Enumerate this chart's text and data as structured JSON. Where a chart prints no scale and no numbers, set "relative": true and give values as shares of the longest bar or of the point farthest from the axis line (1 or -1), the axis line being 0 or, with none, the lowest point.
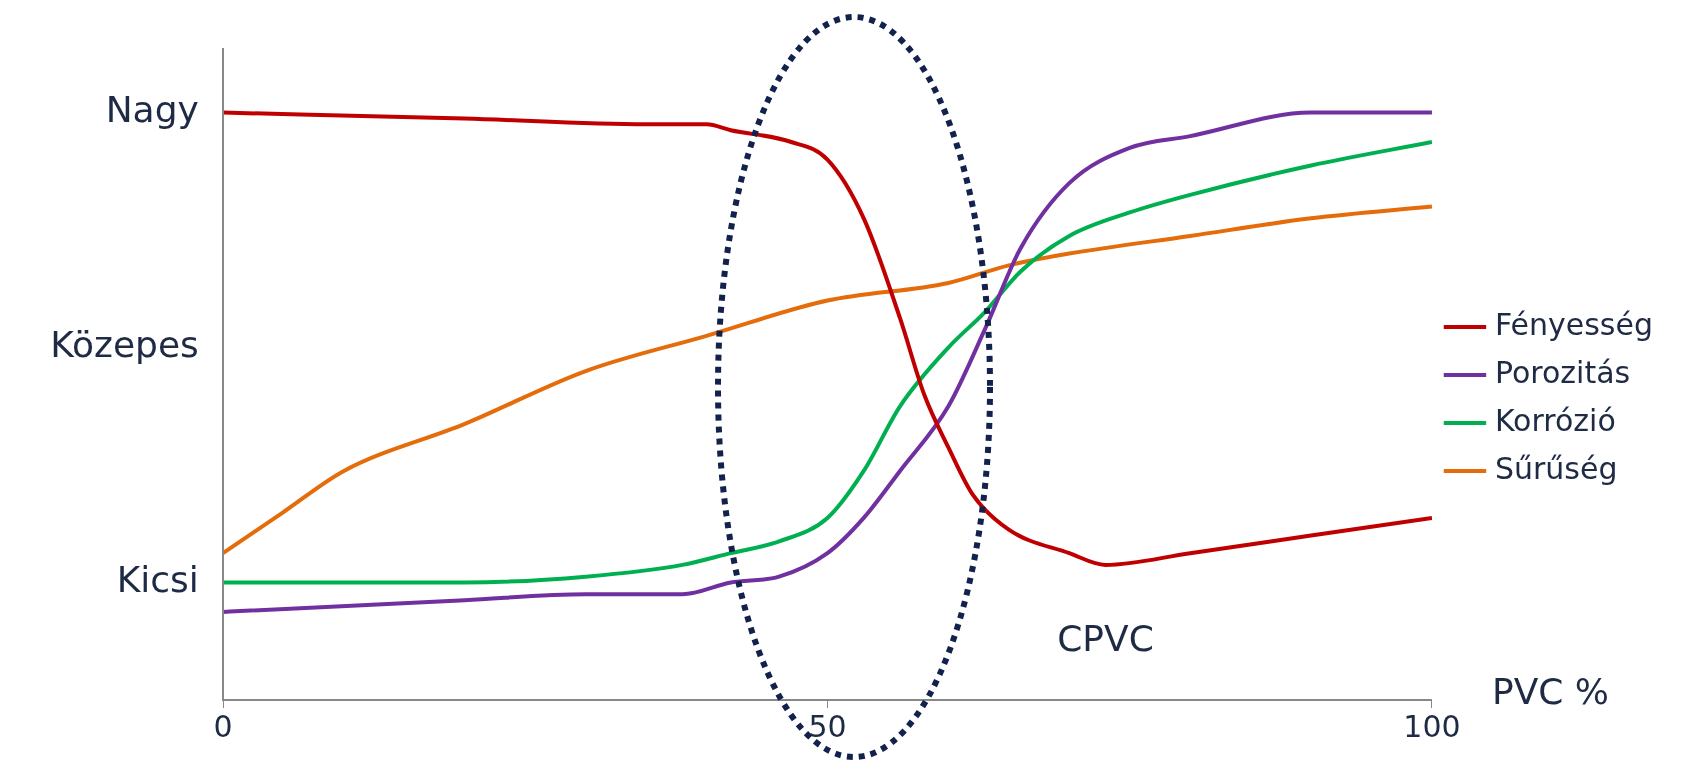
{
  "chart_data": {
    "type": "line",
    "relative": true,
    "xlabel": "PVC %",
    "annotations": [
      "Nagy",
      "Közepes",
      "Kicsi",
      "CPVC"
    ],
    "legend": "right",
    "grid": false,
    "marker": "none",
    "xlim": [
      0,
      100
    ],
    "xticks": [
      0,
      50,
      100
    ],
    "series": [
      {
        "name": "Fényesség",
        "color": "#c00000",
        "x": [
          0,
          20,
          35,
          40,
          42,
          47,
          50,
          53,
          56,
          58,
          60,
          62,
          65,
          70,
          73,
          80,
          90,
          100
        ],
        "values": [
          1.0,
          0.99,
          0.98,
          0.98,
          0.97,
          0.95,
          0.92,
          0.82,
          0.65,
          0.52,
          0.43,
          0.35,
          0.29,
          0.25,
          0.23,
          0.25,
          0.28,
          0.31
        ]
      },
      {
        "name": "Porozitás",
        "color": "#7030a0",
        "x": [
          0,
          20,
          30,
          38,
          42,
          46,
          50,
          53,
          56,
          60,
          63,
          66,
          70,
          75,
          80,
          90,
          100
        ],
        "values": [
          0.15,
          0.17,
          0.18,
          0.18,
          0.2,
          0.21,
          0.25,
          0.31,
          0.39,
          0.5,
          0.63,
          0.77,
          0.88,
          0.94,
          0.96,
          1.0,
          1.0
        ]
      },
      {
        "name": "Korrózió",
        "color": "#00b050",
        "x": [
          0,
          20,
          30,
          38,
          42,
          46,
          50,
          53,
          56,
          60,
          63,
          66,
          70,
          75,
          80,
          90,
          100
        ],
        "values": [
          0.2,
          0.2,
          0.21,
          0.23,
          0.25,
          0.27,
          0.31,
          0.39,
          0.5,
          0.6,
          0.66,
          0.73,
          0.79,
          0.83,
          0.86,
          0.91,
          0.95
        ]
      },
      {
        "name": "Sűrűség",
        "color": "#e46c0a",
        "x": [
          0,
          5,
          10,
          20,
          30,
          40,
          50,
          60,
          65,
          70,
          80,
          90,
          100
        ],
        "values": [
          0.25,
          0.32,
          0.39,
          0.47,
          0.56,
          0.62,
          0.68,
          0.71,
          0.74,
          0.76,
          0.79,
          0.82,
          0.84
        ]
      }
    ]
  }
}
